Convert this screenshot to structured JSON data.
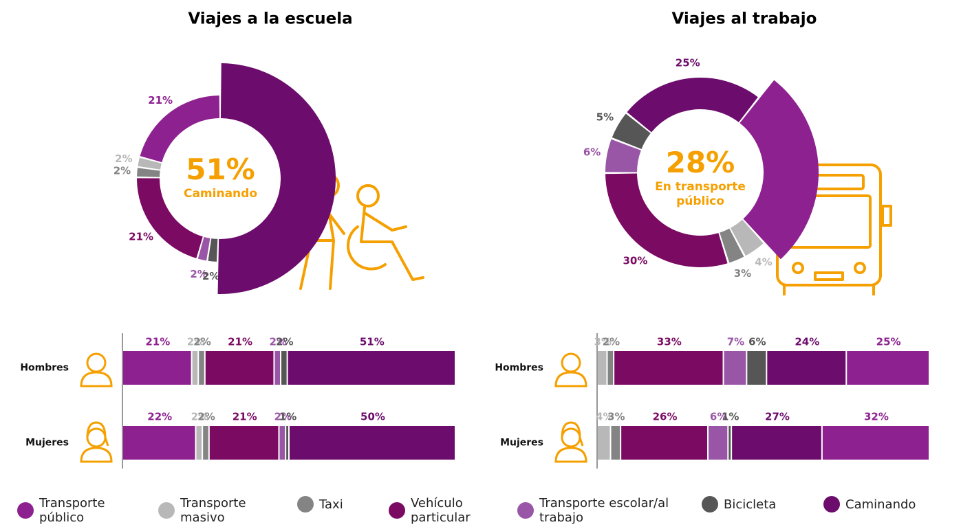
{
  "legend": [
    {
      "name": "Transporte público",
      "color": "#8e2190"
    },
    {
      "name": "Transporte masivo",
      "color": "#b8b8b8"
    },
    {
      "name": "Taxi",
      "color": "#848484"
    },
    {
      "name": "Vehículo particular",
      "color": "#7b0a63"
    },
    {
      "name": "Transporte escolar/al trabajo",
      "color": "#9a56a6"
    },
    {
      "name": "Bicicleta",
      "color": "#565656"
    },
    {
      "name": "Caminando",
      "color": "#6c0c6c"
    }
  ],
  "chart_data": [
    {
      "type": "pie",
      "title": "Viajes a la escuela",
      "center_value": "51%",
      "center_label": "Caminando",
      "values": [
        21,
        2,
        2,
        21,
        2,
        2,
        51
      ],
      "value_labels": [
        "21%",
        "2%",
        "2%",
        "21%",
        "2%",
        "2%",
        "51%"
      ]
    },
    {
      "type": "pie",
      "title": "Viajes al trabajo",
      "center_value": "28%",
      "center_label": "En transporte público",
      "values": [
        28,
        4,
        3,
        30,
        6,
        5,
        25
      ],
      "value_labels": [
        "28%",
        "4%",
        "3%",
        "30%",
        "6%",
        "5%",
        "25%"
      ]
    },
    {
      "type": "stacked-bar",
      "categories": [
        "Hombres",
        "Mujeres"
      ],
      "series": [
        {
          "values": [
            21,
            22
          ],
          "value_labels": [
            "21%",
            "22%"
          ]
        },
        {
          "values": [
            2,
            2
          ],
          "value_labels": [
            "2%",
            "2%"
          ]
        },
        {
          "values": [
            2,
            2
          ],
          "value_labels": [
            "2%",
            "2%"
          ]
        },
        {
          "values": [
            21,
            21
          ],
          "value_labels": [
            "21%",
            "21%"
          ]
        },
        {
          "values": [
            2,
            2
          ],
          "value_labels": [
            "2%",
            "2%"
          ]
        },
        {
          "values": [
            2,
            1
          ],
          "value_labels": [
            "2%",
            "1%"
          ]
        },
        {
          "values": [
            51,
            50
          ],
          "value_labels": [
            "51%",
            "50%"
          ]
        }
      ]
    },
    {
      "type": "stacked-bar",
      "categories": [
        "Hombres",
        "Mujeres"
      ],
      "series": [
        {
          "values": [
            25,
            32
          ],
          "value_labels": [
            "25%",
            "32%"
          ]
        },
        {
          "values": [
            3,
            4
          ],
          "value_labels": [
            "3%",
            "4%"
          ]
        },
        {
          "values": [
            2,
            3
          ],
          "value_labels": [
            "2%",
            "3%"
          ]
        },
        {
          "values": [
            33,
            26
          ],
          "value_labels": [
            "33%",
            "26%"
          ]
        },
        {
          "values": [
            7,
            6
          ],
          "value_labels": [
            "7%",
            "6%"
          ]
        },
        {
          "values": [
            6,
            1
          ],
          "value_labels": [
            "6%",
            "1%"
          ]
        },
        {
          "values": [
            24,
            27
          ],
          "value_labels": [
            "24%",
            "27%"
          ]
        }
      ]
    }
  ]
}
